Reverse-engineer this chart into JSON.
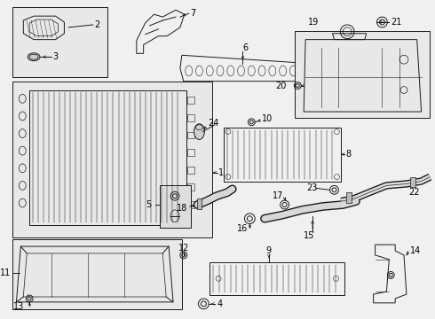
{
  "background_color": "#f0f0f0",
  "line_color": "#1a1a1a",
  "text_color": "#000000",
  "figure_width": 4.9,
  "figure_height": 3.6,
  "dpi": 100
}
